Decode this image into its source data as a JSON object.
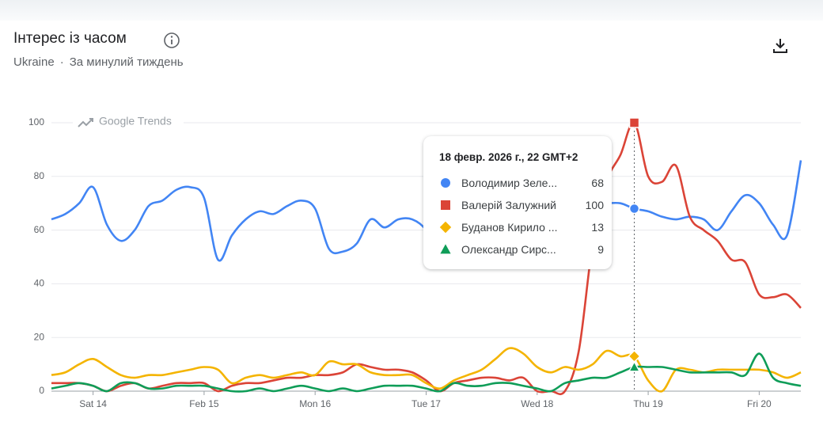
{
  "header": {
    "title": "Інтерес із часом",
    "region": "Ukraine",
    "period": "За минулий тиждень"
  },
  "chart_data": {
    "type": "line",
    "watermark": "Google Trends",
    "tooltip_title": "18 февр. 2026 г., 22 GMT+2",
    "categories": [
      null,
      null,
      null,
      "Sat 14",
      null,
      null,
      null,
      null,
      null,
      null,
      null,
      "Feb 15",
      null,
      null,
      null,
      null,
      null,
      null,
      null,
      "Mon 16",
      null,
      null,
      null,
      null,
      null,
      null,
      null,
      "Tue 17",
      null,
      null,
      null,
      null,
      null,
      null,
      null,
      "Wed 18",
      null,
      null,
      null,
      null,
      null,
      null,
      null,
      "Thu 19",
      null,
      null,
      null,
      null,
      null,
      null,
      null,
      "Fri 20",
      null,
      null,
      null
    ],
    "ylim": [
      0,
      100
    ],
    "yticks": [
      0,
      20,
      40,
      60,
      80,
      100
    ],
    "grid": true,
    "series": [
      {
        "name": "Володимир Зеле...",
        "color": "#4285f4",
        "marker": "circle",
        "values": [
          64,
          66,
          70,
          76,
          62,
          56,
          60,
          69,
          71,
          75,
          76,
          72,
          49,
          58,
          64,
          67,
          66,
          69,
          71,
          68,
          53,
          52,
          55,
          64,
          61,
          64,
          64,
          60,
          50,
          48,
          54,
          58,
          61,
          62,
          64,
          66,
          67,
          68,
          69,
          70,
          70,
          70,
          68,
          67,
          65,
          64,
          65,
          64,
          60,
          67,
          73,
          70,
          62,
          58,
          86
        ]
      },
      {
        "name": "Валерій Залужний",
        "color": "#db4437",
        "marker": "square",
        "values": [
          3,
          3,
          3,
          2,
          0,
          2,
          3,
          1,
          2,
          3,
          3,
          3,
          0,
          2,
          3,
          3,
          4,
          5,
          5,
          6,
          6,
          7,
          10,
          9,
          8,
          8,
          7,
          4,
          0,
          3,
          4,
          5,
          5,
          4,
          5,
          0,
          0,
          0,
          15,
          55,
          78,
          88,
          100,
          80,
          78,
          84,
          65,
          60,
          56,
          49,
          48,
          36,
          35,
          36,
          31
        ]
      },
      {
        "name": "Буданов Кирило ...",
        "color": "#f4b400",
        "marker": "diamond",
        "values": [
          6,
          7,
          10,
          12,
          9,
          6,
          5,
          6,
          6,
          7,
          8,
          9,
          8,
          3,
          5,
          6,
          5,
          6,
          7,
          6,
          11,
          10,
          10,
          7,
          6,
          6,
          6,
          3,
          1,
          4,
          6,
          8,
          12,
          16,
          14,
          9,
          7,
          9,
          8,
          10,
          15,
          13,
          13,
          4,
          0,
          8,
          8,
          7,
          8,
          8,
          8,
          8,
          7,
          5,
          7
        ]
      },
      {
        "name": "Олександр Сирс...",
        "color": "#0f9d58",
        "marker": "triangle",
        "values": [
          1,
          2,
          3,
          2,
          0,
          3,
          3,
          1,
          1,
          2,
          2,
          2,
          1,
          0,
          0,
          1,
          0,
          1,
          2,
          1,
          0,
          1,
          0,
          1,
          2,
          2,
          2,
          1,
          0,
          3,
          2,
          2,
          3,
          3,
          2,
          1,
          0,
          3,
          4,
          5,
          5,
          7,
          9,
          9,
          9,
          8,
          7,
          7,
          7,
          7,
          6,
          14,
          5,
          3,
          2
        ]
      }
    ]
  }
}
